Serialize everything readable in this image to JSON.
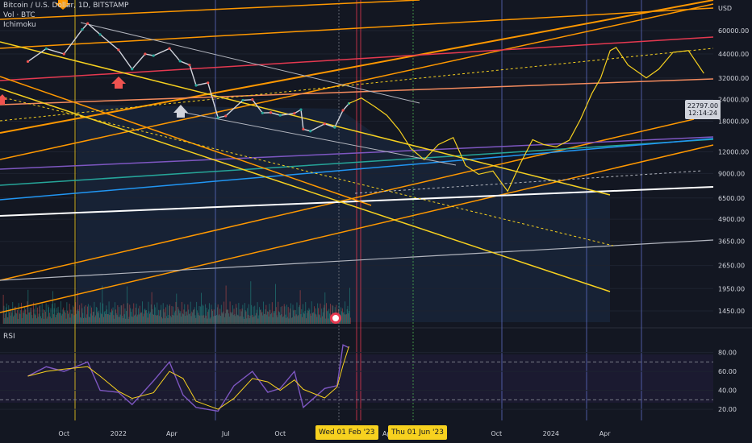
{
  "header": {
    "title": "Bitcoin / U.S. Dollar, 1D, BITSTAMP",
    "indicator_vol": "Vol · BTC",
    "indicator_ichimoku": "Ichimoku"
  },
  "rsi_label": "RSI",
  "symbol": "BTCUSD",
  "last_price": "22797.00",
  "countdown": "12:14:24",
  "currency": "USD",
  "crosshair_dates": [
    "Wed 01 Feb '23",
    "Thu 01 Jun '23"
  ],
  "colors": {
    "background": "#131722",
    "up": "#26a69a",
    "down": "#ef5350",
    "orange": "#ff9800",
    "yellow": "#f7d11f",
    "red": "#e53950",
    "purple": "#7e57c2",
    "rsi": "#7e57c2"
  },
  "chart_data": [
    {
      "type": "line",
      "title": "Bitcoin / U.S. Dollar, 1D, BITSTAMP",
      "scale": "log",
      "y_unit": "USD",
      "y_ticks": [
        "60000.00",
        "44000.00",
        "32000.00",
        "24000.00",
        "18000.00",
        "12000.00",
        "9000.00",
        "6500.00",
        "4900.00",
        "3650.00",
        "2650.00",
        "1950.00",
        "1450.00"
      ],
      "y_tick_values": [
        60000,
        44000,
        32000,
        24000,
        18000,
        12000,
        9000,
        6500,
        4900,
        3650,
        2650,
        1950,
        1450
      ],
      "x_ticks": [
        "Oct",
        "2022",
        "Apr",
        "Jul",
        "Oct",
        "Apr",
        "Oct",
        "2024",
        "Apr"
      ],
      "x_tick_dates": [
        "2021-10-01",
        "2022-01-01",
        "2022-04-01",
        "2022-07-01",
        "2022-10-01",
        "2023-04-01",
        "2023-10-01",
        "2024-01-01",
        "2024-04-01"
      ],
      "price_series": {
        "name": "BTCUSD",
        "x": [
          "2021-08-01",
          "2021-09-01",
          "2021-10-01",
          "2021-11-01",
          "2021-11-10",
          "2021-12-01",
          "2022-01-01",
          "2022-01-24",
          "2022-02-15",
          "2022-03-01",
          "2022-03-28",
          "2022-04-15",
          "2022-05-01",
          "2022-05-12",
          "2022-06-01",
          "2022-06-18",
          "2022-07-01",
          "2022-07-30",
          "2022-08-15",
          "2022-09-01",
          "2022-09-15",
          "2022-10-01",
          "2022-10-25",
          "2022-11-05",
          "2022-11-09",
          "2022-11-21",
          "2022-12-15",
          "2023-01-01",
          "2023-01-15",
          "2023-01-25"
        ],
        "y": [
          39800,
          47200,
          44000,
          61000,
          66000,
          57000,
          46500,
          36000,
          44000,
          43000,
          47300,
          40000,
          38000,
          29000,
          30000,
          18900,
          19300,
          23800,
          24000,
          20100,
          20200,
          19500,
          20000,
          21000,
          16200,
          15800,
          17400,
          16600,
          20800,
          22800
        ]
      },
      "projection": {
        "x": [
          "2023-01-25",
          "2023-02-15",
          "2023-03-10",
          "2023-03-30",
          "2023-04-20",
          "2023-05-10",
          "2023-06-01",
          "2023-06-25",
          "2023-07-20",
          "2023-08-10",
          "2023-09-01",
          "2023-09-25",
          "2023-10-20",
          "2023-11-10",
          "2023-12-01",
          "2023-12-20",
          "2024-01-10",
          "2024-02-01",
          "2024-02-20",
          "2024-03-10",
          "2024-03-25",
          "2024-04-10",
          "2024-04-20",
          "2024-05-10",
          "2024-06-10",
          "2024-07-01",
          "2024-07-25",
          "2024-08-20",
          "2024-09-15"
        ],
        "y": [
          22800,
          24500,
          21800,
          19500,
          16000,
          12500,
          10800,
          13200,
          14500,
          10000,
          8900,
          9300,
          7100,
          10200,
          14100,
          13200,
          12800,
          14000,
          18500,
          26000,
          32000,
          46000,
          48000,
          38000,
          32000,
          36000,
          45000,
          46000,
          34000
        ]
      },
      "volume_points": 520,
      "x_range": [
        "2021-06-15",
        "2024-10-01"
      ],
      "grid": true,
      "legend": "none"
    },
    {
      "type": "line",
      "title": "RSI",
      "y_ticks": [
        "80.00",
        "60.00",
        "40.00",
        "20.00"
      ],
      "y_tick_values": [
        80,
        60,
        40,
        20
      ],
      "ylim": [
        15,
        95
      ],
      "band": [
        30,
        70
      ],
      "series": [
        {
          "name": "RSI",
          "x": [
            "2021-08-01",
            "2021-09-01",
            "2021-10-01",
            "2021-11-10",
            "2021-12-01",
            "2022-01-01",
            "2022-01-24",
            "2022-03-01",
            "2022-03-28",
            "2022-04-20",
            "2022-05-12",
            "2022-06-18",
            "2022-07-15",
            "2022-08-15",
            "2022-09-10",
            "2022-10-01",
            "2022-10-25",
            "2022-11-09",
            "2022-12-15",
            "2023-01-05",
            "2023-01-15",
            "2023-01-25"
          ],
          "y": [
            55,
            65,
            60,
            70,
            40,
            38,
            25,
            50,
            70,
            35,
            22,
            18,
            45,
            60,
            38,
            42,
            60,
            22,
            42,
            45,
            88,
            85
          ]
        }
      ]
    }
  ]
}
